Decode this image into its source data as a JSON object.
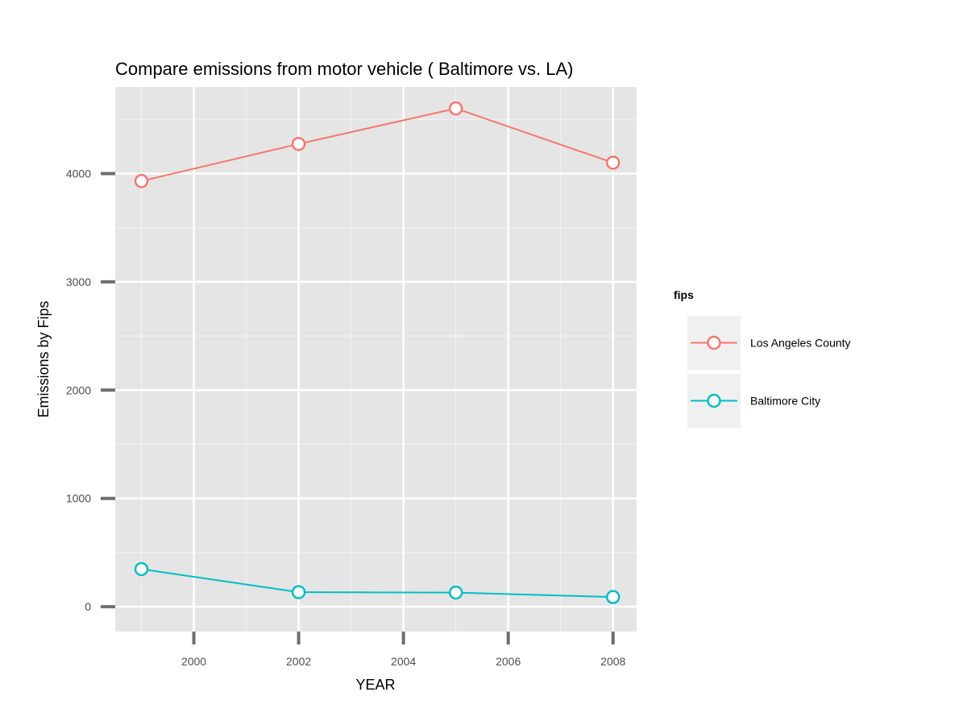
{
  "chart_data": {
    "type": "line",
    "title": "Compare emissions from motor vehicle ( Baltimore vs. LA)",
    "xlabel": "YEAR",
    "ylabel": "Emissions by Fips",
    "x": [
      1999,
      2002,
      2005,
      2008
    ],
    "xlim": [
      1998.5,
      2008.45
    ],
    "ylim": [
      -230,
      4800
    ],
    "x_ticks": [
      2000,
      2002,
      2004,
      2006,
      2008
    ],
    "x_tick_labels": [
      "2000",
      "2002",
      "2004",
      "2006",
      "2008"
    ],
    "y_ticks": [
      0,
      1000,
      2000,
      3000,
      4000
    ],
    "y_tick_labels": [
      "0",
      "1000",
      "2000",
      "3000",
      "4000"
    ],
    "grid": true,
    "legend": {
      "title": "fips",
      "placement": "right"
    },
    "series": [
      {
        "name": "Los Angeles County",
        "color": "#F8766D",
        "values": [
          3931,
          4274,
          4602,
          4101
        ]
      },
      {
        "name": "Baltimore City",
        "color": "#00BFC4",
        "values": [
          347,
          134,
          130,
          89
        ]
      }
    ]
  }
}
